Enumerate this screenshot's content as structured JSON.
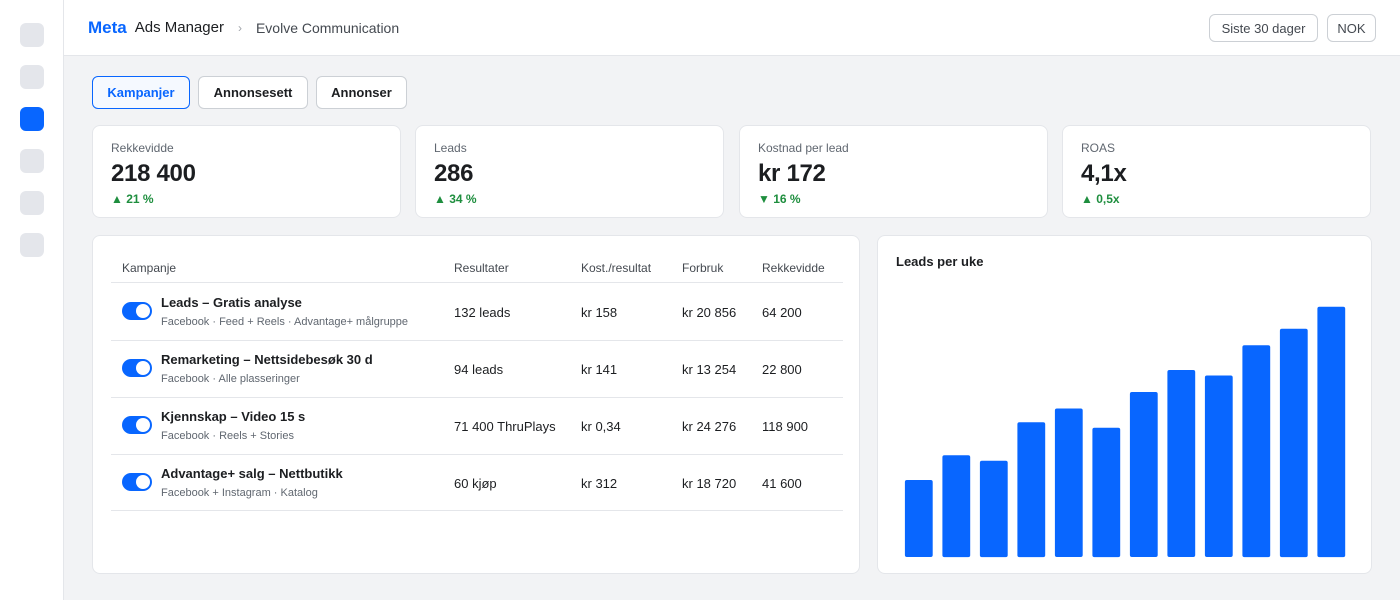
{
  "header": {
    "brand": "Meta",
    "product": "Ads Manager",
    "separator": "›",
    "account": "Evolve Communication",
    "date_range": "Siste 30 dager",
    "currency": "NOK"
  },
  "sidebar": {
    "items": [
      {
        "icon": "nav-icon-1",
        "active": false
      },
      {
        "icon": "nav-icon-2",
        "active": false
      },
      {
        "icon": "nav-icon-3",
        "active": true
      },
      {
        "icon": "nav-icon-4",
        "active": false
      },
      {
        "icon": "nav-icon-5",
        "active": false
      },
      {
        "icon": "nav-icon-6",
        "active": false
      }
    ]
  },
  "tabs": [
    {
      "label": "Kampanjer",
      "active": true
    },
    {
      "label": "Annonsesett",
      "active": false
    },
    {
      "label": "Annonser",
      "active": false
    }
  ],
  "kpis": [
    {
      "label": "Rekkevidde",
      "value": "218 400",
      "delta": "▲ 21 %"
    },
    {
      "label": "Leads",
      "value": "286",
      "delta": "▲ 34 %"
    },
    {
      "label": "Kostnad per lead",
      "value": "kr 172",
      "delta": "▼ 16 %"
    },
    {
      "label": "ROAS",
      "value": "4,1x",
      "delta": "▲ 0,5x"
    }
  ],
  "table": {
    "columns": [
      "Kampanje",
      "Resultater",
      "Kost./resultat",
      "Forbruk",
      "Rekkevidde"
    ],
    "rows": [
      {
        "name": "Leads – Gratis analyse",
        "sub": "Facebook · Feed + Reels · Advantage+ målgruppe",
        "active": true,
        "results": "132 leads",
        "cost": "kr 158",
        "spend": "kr 20 856",
        "reach": "64 200"
      },
      {
        "name": "Remarketing – Nettsidebesøk 30 d",
        "sub": "Facebook · Alle plasseringer",
        "active": true,
        "results": "94 leads",
        "cost": "kr 141",
        "spend": "kr 13 254",
        "reach": "22 800"
      },
      {
        "name": "Kjennskap – Video 15 s",
        "sub": "Facebook · Reels + Stories",
        "active": true,
        "results": "71 400 ThruPlays",
        "cost": "kr 0,34",
        "spend": "kr 24 276",
        "reach": "118 900"
      },
      {
        "name": "Advantage+ salg – Nettbutikk",
        "sub": "Facebook + Instagram · Katalog",
        "active": true,
        "results": "60 kjøp",
        "cost": "kr 312",
        "spend": "kr 18 720",
        "reach": "41 600"
      }
    ]
  },
  "chart": {
    "title": "Leads per uke",
    "color": "#0866ff"
  },
  "chart_data": {
    "type": "bar",
    "title": "Leads per uke",
    "categories": [
      "",
      "",
      "",
      "",
      "",
      "",
      "",
      "",
      "",
      "",
      "",
      ""
    ],
    "values": [
      14,
      18.5,
      17.5,
      24.5,
      27,
      23.5,
      30,
      34,
      33,
      38.5,
      41.5,
      45.5
    ],
    "ylim": [
      0,
      50
    ],
    "xlabel": "",
    "ylabel": "",
    "grid": false,
    "legend": "none"
  }
}
